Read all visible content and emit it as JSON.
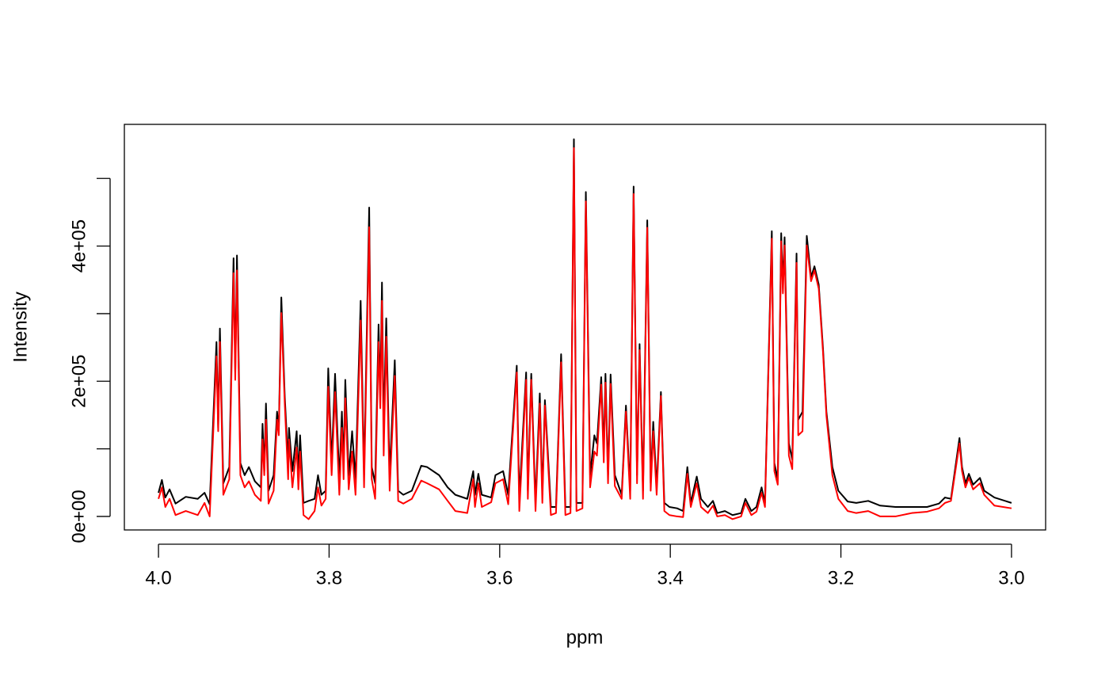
{
  "chart_data": {
    "type": "line",
    "xlabel": "ppm",
    "ylabel": "Intensity",
    "xlim": [
      4.04,
      2.96
    ],
    "ylim": [
      -20000,
      580000
    ],
    "xticks": [
      {
        "value": 4,
        "label": "4.0"
      },
      3.8,
      3.6,
      3.4,
      3.2,
      {
        "value": 3,
        "label": "3.0"
      }
    ],
    "yticks": [
      {
        "value": 0,
        "label": "0e+00"
      },
      {
        "value": 200000,
        "label": "2e+05"
      },
      {
        "value": 400000,
        "label": "4e+05"
      }
    ],
    "yticks_unlabeled": [
      100000,
      300000,
      500000
    ],
    "x": [
      4.0,
      3.996,
      3.992,
      3.987,
      3.98,
      3.968,
      3.954,
      3.946,
      3.94,
      3.932,
      3.93,
      3.928,
      3.924,
      3.917,
      3.912,
      3.91,
      3.908,
      3.904,
      3.899,
      3.894,
      3.887,
      3.88,
      3.878,
      3.876,
      3.874,
      3.871,
      3.865,
      3.861,
      3.859,
      3.856,
      3.852,
      3.848,
      3.847,
      3.843,
      3.838,
      3.836,
      3.834,
      3.83,
      3.824,
      3.817,
      3.813,
      3.809,
      3.804,
      3.801,
      3.797,
      3.793,
      3.788,
      3.785,
      3.783,
      3.781,
      3.777,
      3.773,
      3.769,
      3.763,
      3.759,
      3.753,
      3.75,
      3.746,
      3.742,
      3.74,
      3.738,
      3.736,
      3.733,
      3.729,
      3.723,
      3.719,
      3.713,
      3.703,
      3.692,
      3.685,
      3.671,
      3.661,
      3.652,
      3.638,
      3.631,
      3.629,
      3.625,
      3.621,
      3.61,
      3.605,
      3.596,
      3.59,
      3.58,
      3.577,
      3.569,
      3.567,
      3.563,
      3.558,
      3.553,
      3.55,
      3.547,
      3.54,
      3.534,
      3.528,
      3.523,
      3.517,
      3.513,
      3.51,
      3.503,
      3.499,
      3.494,
      3.489,
      3.486,
      3.481,
      3.478,
      3.476,
      3.473,
      3.47,
      3.465,
      3.457,
      3.452,
      3.447,
      3.443,
      3.439,
      3.436,
      3.432,
      3.427,
      3.423,
      3.42,
      3.416,
      3.411,
      3.407,
      3.401,
      3.392,
      3.385,
      3.38,
      3.376,
      3.369,
      3.364,
      3.356,
      3.35,
      3.345,
      3.336,
      3.327,
      3.317,
      3.312,
      3.305,
      3.299,
      3.293,
      3.289,
      3.281,
      3.278,
      3.274,
      3.27,
      3.268,
      3.266,
      3.261,
      3.257,
      3.252,
      3.25,
      3.245,
      3.24,
      3.235,
      3.231,
      3.226,
      3.221,
      3.217,
      3.21,
      3.203,
      3.192,
      3.182,
      3.168,
      3.154,
      3.136,
      3.117,
      3.099,
      3.085,
      3.078,
      3.071,
      3.061,
      3.058,
      3.054,
      3.05,
      3.045,
      3.037,
      3.032,
      3.02,
      3.0
    ],
    "series": [
      {
        "color": "#000000",
        "values": [
          35000,
          54000,
          28000,
          40000,
          19000,
          29000,
          26000,
          35000,
          18000,
          258000,
          131000,
          278000,
          49000,
          73000,
          382000,
          213000,
          386000,
          79000,
          61000,
          73000,
          52000,
          43000,
          137000,
          67000,
          167000,
          38000,
          61000,
          155000,
          126000,
          324000,
          178000,
          79000,
          131000,
          67000,
          126000,
          61000,
          120000,
          20000,
          23000,
          26000,
          61000,
          32000,
          38000,
          219000,
          79000,
          211000,
          55000,
          155000,
          73000,
          202000,
          61000,
          126000,
          55000,
          319000,
          61000,
          457000,
          73000,
          49000,
          284000,
          178000,
          346000,
          126000,
          293000,
          61000,
          231000,
          38000,
          32000,
          38000,
          75000,
          73000,
          61000,
          43000,
          32000,
          26000,
          67000,
          32000,
          63000,
          32000,
          28000,
          61000,
          67000,
          32000,
          223000,
          26000,
          213000,
          38000,
          211000,
          20000,
          182000,
          32000,
          172000,
          14000,
          14000,
          240000,
          14000,
          14000,
          558000,
          20000,
          20000,
          480000,
          61000,
          120000,
          108000,
          206000,
          96000,
          211000,
          61000,
          210000,
          61000,
          32000,
          164000,
          38000,
          488000,
          61000,
          255000,
          38000,
          438000,
          49000,
          140000,
          43000,
          184000,
          20000,
          14000,
          12000,
          8000,
          73000,
          20000,
          59000,
          26000,
          14000,
          23000,
          5000,
          8000,
          2000,
          5000,
          26000,
          8000,
          14000,
          43000,
          20000,
          422000,
          79000,
          55000,
          419000,
          343000,
          413000,
          108000,
          84000,
          389000,
          143000,
          155000,
          415000,
          354000,
          370000,
          343000,
          249000,
          155000,
          73000,
          38000,
          22000,
          20000,
          23000,
          16000,
          14000,
          14000,
          14000,
          19000,
          28000,
          26000,
          116000,
          73000,
          49000,
          63000,
          47000,
          57000,
          38000,
          28000,
          20000
        ]
      },
      {
        "color": "#ff0000",
        "values": [
          26000,
          43000,
          14000,
          26000,
          2000,
          8000,
          2000,
          20000,
          0,
          237000,
          126000,
          258000,
          32000,
          55000,
          360000,
          202000,
          364000,
          61000,
          43000,
          52000,
          32000,
          23000,
          114000,
          61000,
          143000,
          19000,
          38000,
          143000,
          120000,
          301000,
          167000,
          55000,
          114000,
          43000,
          102000,
          40000,
          96000,
          2000,
          -4000,
          8000,
          43000,
          16000,
          26000,
          192000,
          61000,
          184000,
          32000,
          131000,
          55000,
          175000,
          40000,
          96000,
          32000,
          290000,
          43000,
          428000,
          55000,
          26000,
          258000,
          160000,
          319000,
          90000,
          266000,
          38000,
          208000,
          23000,
          19000,
          26000,
          53000,
          49000,
          40000,
          23000,
          8000,
          5000,
          55000,
          14000,
          49000,
          14000,
          21000,
          49000,
          55000,
          18000,
          213000,
          8000,
          202000,
          26000,
          202000,
          8000,
          167000,
          20000,
          164000,
          2000,
          5000,
          228000,
          2000,
          5000,
          545000,
          8000,
          12000,
          466000,
          43000,
          96000,
          90000,
          195000,
          80000,
          198000,
          49000,
          196000,
          45000,
          26000,
          155000,
          26000,
          477000,
          49000,
          246000,
          26000,
          427000,
          38000,
          126000,
          32000,
          178000,
          8000,
          2000,
          0,
          -1000,
          63000,
          14000,
          49000,
          14000,
          5000,
          16000,
          0,
          2000,
          -4000,
          0,
          20000,
          2000,
          7000,
          35000,
          14000,
          411000,
          67000,
          47000,
          407000,
          330000,
          401000,
          90000,
          70000,
          375000,
          120000,
          126000,
          401000,
          348000,
          364000,
          337000,
          243000,
          149000,
          61000,
          26000,
          8000,
          5000,
          8000,
          0,
          0,
          5000,
          7000,
          12000,
          20000,
          23000,
          108000,
          67000,
          43000,
          57000,
          40000,
          49000,
          32000,
          16000,
          12000
        ]
      }
    ]
  }
}
